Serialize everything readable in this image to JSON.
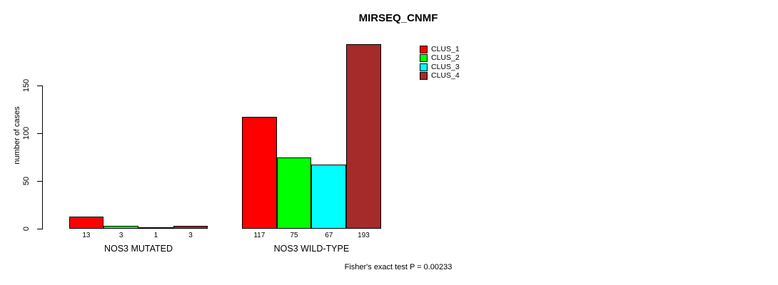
{
  "chart_data": {
    "type": "bar",
    "title": "MIRSEQ_CNMF",
    "xlabel": "",
    "ylabel": "number of cases",
    "categories": [
      "NOS3 MUTATED",
      "NOS3 WILD-TYPE"
    ],
    "series": [
      {
        "name": "CLUS_1",
        "color": "#ff0000",
        "values": [
          13,
          117
        ]
      },
      {
        "name": "CLUS_2",
        "color": "#00ff00",
        "values": [
          3,
          75
        ]
      },
      {
        "name": "CLUS_3",
        "color": "#00ffff",
        "values": [
          1,
          67
        ]
      },
      {
        "name": "CLUS_4",
        "color": "#a52a2a",
        "values": [
          3,
          193
        ]
      }
    ],
    "yticks": [
      0,
      50,
      100,
      150
    ],
    "ylim": [
      0,
      200
    ],
    "grid": false,
    "bar_value_labels_shown": true,
    "legend_position": "top-right",
    "annotation": "Fisher's exact test P = 0.00233"
  },
  "legend": {
    "items": [
      {
        "label": "CLUS_1",
        "color": "#ff0000"
      },
      {
        "label": "CLUS_2",
        "color": "#00ff00"
      },
      {
        "label": "CLUS_3",
        "color": "#00ffff"
      },
      {
        "label": "CLUS_4",
        "color": "#a52a2a"
      }
    ]
  }
}
